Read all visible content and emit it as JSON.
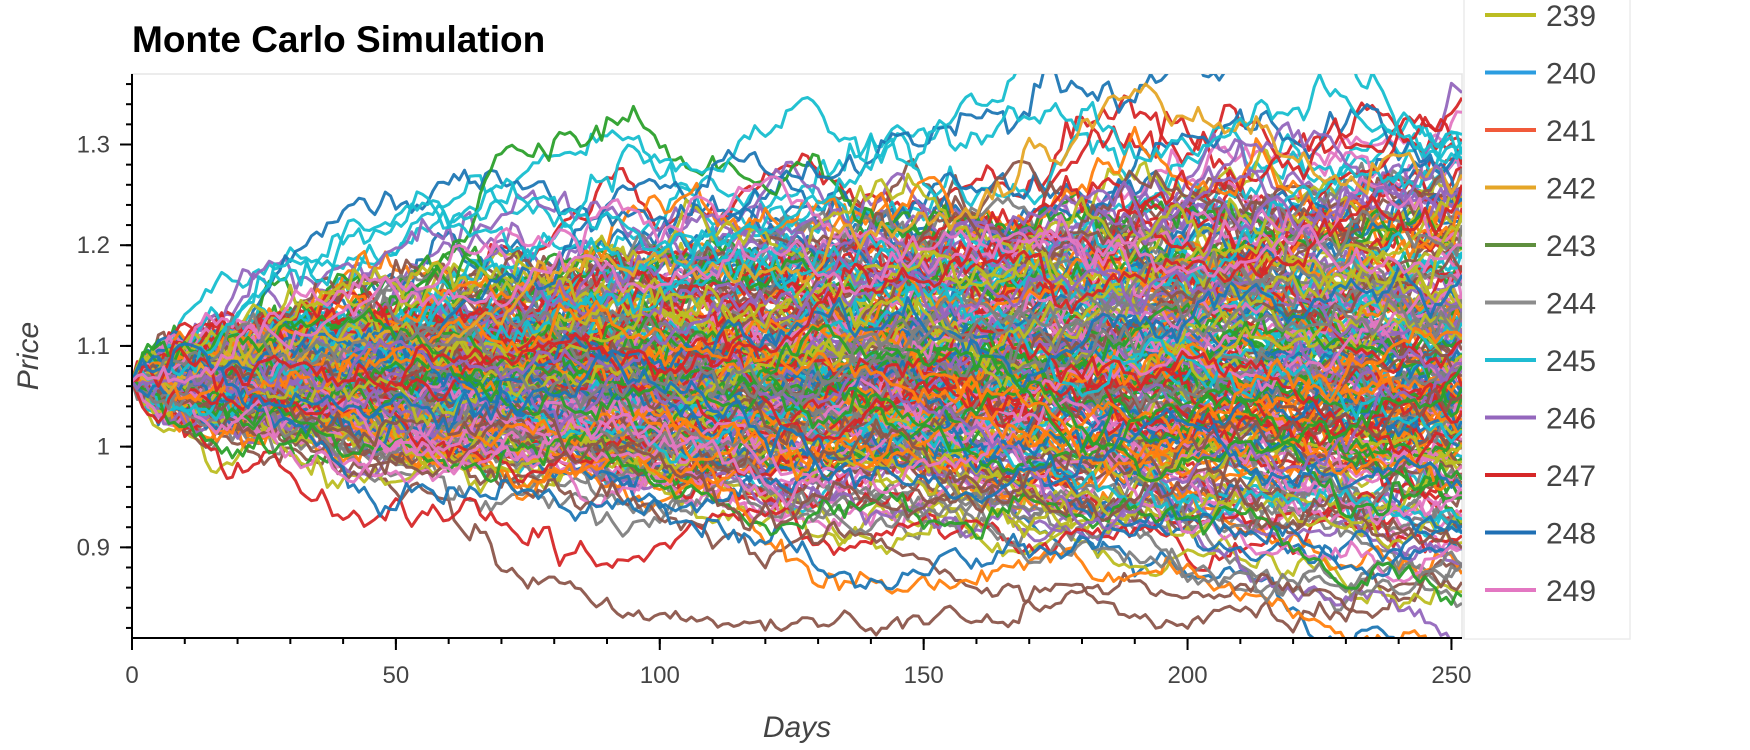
{
  "chart_data": {
    "type": "line",
    "title": "Monte Carlo Simulation",
    "xlabel": "Days",
    "ylabel": "Price",
    "xlim": [
      0,
      252
    ],
    "ylim": [
      0.81,
      1.37
    ],
    "x_ticks": [
      0,
      50,
      100,
      150,
      200,
      250
    ],
    "x_tick_labels": [
      "0",
      "50",
      "100",
      "150",
      "200",
      "250"
    ],
    "y_ticks": [
      0.9,
      1.0,
      1.1,
      1.2,
      1.3
    ],
    "y_tick_labels": [
      "0.9",
      "1",
      "1.1",
      "1.2",
      "1.3"
    ],
    "grid": false,
    "legend_position": "right",
    "start_value": 1.065,
    "days": 252,
    "series_count": 250,
    "palette": [
      "#1f77b4",
      "#ff7f0e",
      "#2ca02c",
      "#d62728",
      "#9467bd",
      "#8c564b",
      "#e377c2",
      "#7f7f7f",
      "#bcbd22",
      "#17becf"
    ],
    "series_highlights": [
      {
        "name": "239",
        "color": "#bcbd22",
        "end": 1.23
      },
      {
        "name": "240",
        "color": "#1f77b4",
        "end": 1.17
      },
      {
        "name": "241",
        "color": "#ff7f0e",
        "end": 1.11
      },
      {
        "name": "242",
        "color": "#e5a627",
        "end": 1.27
      },
      {
        "name": "243",
        "color": "#2ca02c",
        "end": 1.08
      },
      {
        "name": "244",
        "color": "#7f7f7f",
        "end": 1.22
      },
      {
        "name": "245",
        "color": "#17becf",
        "end": 1.29
      },
      {
        "name": "246",
        "color": "#9467bd",
        "end": 1.25
      },
      {
        "name": "247",
        "color": "#d62728",
        "end": 1.26
      },
      {
        "name": "248",
        "color": "#1f77b4",
        "end": 0.96
      },
      {
        "name": "249",
        "color": "#e377c2",
        "end": 1.2
      }
    ]
  },
  "legend": {
    "items": [
      {
        "label": "239",
        "color": "#bcbd22"
      },
      {
        "label": "240",
        "color": "#2b9de0"
      },
      {
        "label": "241",
        "color": "#f15a3a"
      },
      {
        "label": "242",
        "color": "#e5a627"
      },
      {
        "label": "243",
        "color": "#5f8f3e"
      },
      {
        "label": "244",
        "color": "#8c8c8c"
      },
      {
        "label": "245",
        "color": "#1fbcd2"
      },
      {
        "label": "246",
        "color": "#9467bd"
      },
      {
        "label": "247",
        "color": "#d62728"
      },
      {
        "label": "248",
        "color": "#1f6fb4"
      },
      {
        "label": "249",
        "color": "#e377c2"
      }
    ]
  }
}
